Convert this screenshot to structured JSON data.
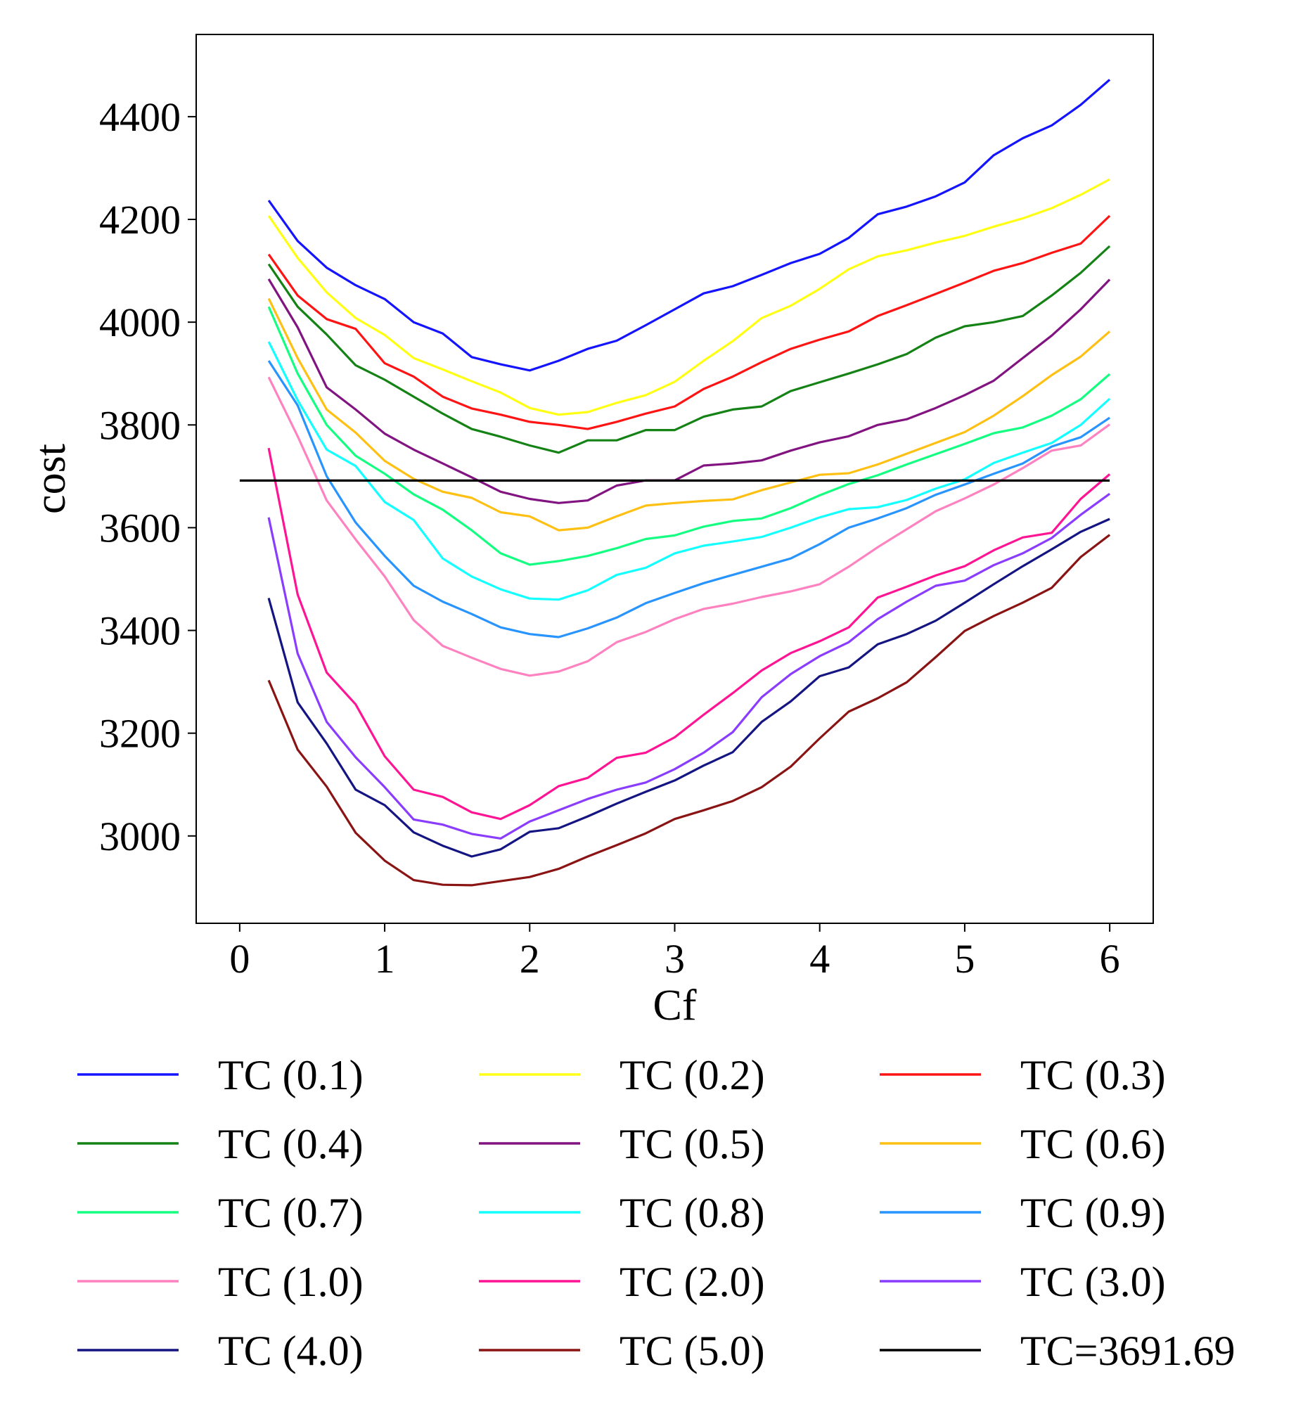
{
  "chart_data": {
    "type": "line",
    "title": "",
    "xlabel": "Cf",
    "ylabel": "cost",
    "xlim": [
      -0.3,
      6.3
    ],
    "ylim": [
      2830,
      4560
    ],
    "xticks": [
      "0",
      "1",
      "2",
      "3",
      "4",
      "5",
      "6"
    ],
    "yticks": [
      "3000",
      "3200",
      "3400",
      "3600",
      "3800",
      "4000",
      "4200",
      "4400"
    ],
    "legend_position": "bottom",
    "x": [
      0.2,
      0.4,
      0.6,
      0.8,
      1.0,
      1.2,
      1.4,
      1.6,
      1.8,
      2.0,
      2.2,
      2.4,
      2.6,
      2.8,
      3.0,
      3.2,
      3.4,
      3.6,
      3.8,
      4.0,
      4.2,
      4.4,
      4.6,
      4.8,
      5.0,
      5.2,
      5.4,
      5.6,
      5.8,
      6.0
    ],
    "series": [
      {
        "name": "TC (0.1)",
        "color": "#1414ff",
        "values": [
          4237,
          4158,
          4106,
          4072,
          4045,
          4000,
          3978,
          3932,
          3918,
          3906,
          3925,
          3948,
          3964,
          3994,
          4025,
          4056,
          4070,
          4092,
          4115,
          4133,
          4164,
          4210,
          4225,
          4245,
          4272,
          4325,
          4358,
          4383,
          4423,
          4472
        ]
      },
      {
        "name": "TC (0.2)",
        "color": "#ffff14",
        "values": [
          4207,
          4125,
          4058,
          4008,
          3975,
          3930,
          3908,
          3885,
          3863,
          3833,
          3820,
          3825,
          3843,
          3858,
          3884,
          3925,
          3963,
          4008,
          4032,
          4065,
          4103,
          4128,
          4140,
          4155,
          4168,
          4186,
          4202,
          4222,
          4248,
          4278
        ]
      },
      {
        "name": "TC (0.3)",
        "color": "#ff1414",
        "values": [
          4132,
          4052,
          4006,
          3987,
          3920,
          3894,
          3855,
          3832,
          3820,
          3806,
          3800,
          3792,
          3806,
          3822,
          3836,
          3870,
          3894,
          3922,
          3948,
          3966,
          3982,
          4012,
          4033,
          4055,
          4077,
          4100,
          4115,
          4135,
          4153,
          4207
        ]
      },
      {
        "name": "TC (0.4)",
        "color": "#148214",
        "values": [
          4113,
          4030,
          3976,
          3916,
          3888,
          3855,
          3822,
          3792,
          3777,
          3760,
          3746,
          3770,
          3770,
          3790,
          3790,
          3816,
          3830,
          3836,
          3866,
          3883,
          3900,
          3918,
          3938,
          3970,
          3992,
          4000,
          4012,
          4052,
          4096,
          4148
        ]
      },
      {
        "name": "TC (0.5)",
        "color": "#821482",
        "values": [
          4084,
          3990,
          3873,
          3830,
          3783,
          3752,
          3725,
          3698,
          3670,
          3656,
          3648,
          3653,
          3682,
          3692,
          3692,
          3721,
          3725,
          3731,
          3750,
          3766,
          3778,
          3800,
          3811,
          3833,
          3858,
          3886,
          3930,
          3974,
          4025,
          4083
        ]
      },
      {
        "name": "TC (0.6)",
        "color": "#ffc014",
        "values": [
          4046,
          3930,
          3830,
          3785,
          3730,
          3695,
          3670,
          3658,
          3630,
          3622,
          3595,
          3600,
          3622,
          3643,
          3648,
          3652,
          3655,
          3673,
          3688,
          3703,
          3706,
          3723,
          3744,
          3765,
          3786,
          3818,
          3856,
          3897,
          3933,
          3982
        ]
      },
      {
        "name": "TC (0.7)",
        "color": "#14ff82",
        "values": [
          4030,
          3900,
          3800,
          3740,
          3705,
          3665,
          3635,
          3595,
          3550,
          3528,
          3535,
          3545,
          3560,
          3578,
          3585,
          3602,
          3613,
          3618,
          3638,
          3663,
          3685,
          3702,
          3723,
          3743,
          3763,
          3784,
          3795,
          3818,
          3850,
          3899
        ]
      },
      {
        "name": "TC (0.8)",
        "color": "#14ffff",
        "values": [
          3962,
          3848,
          3752,
          3720,
          3650,
          3615,
          3540,
          3505,
          3480,
          3462,
          3460,
          3478,
          3508,
          3522,
          3550,
          3565,
          3573,
          3582,
          3600,
          3620,
          3636,
          3640,
          3654,
          3676,
          3694,
          3726,
          3746,
          3765,
          3800,
          3851
        ]
      },
      {
        "name": "TC (0.9)",
        "color": "#2894ff",
        "values": [
          3925,
          3838,
          3700,
          3610,
          3545,
          3487,
          3456,
          3432,
          3406,
          3393,
          3387,
          3404,
          3425,
          3453,
          3473,
          3492,
          3508,
          3524,
          3540,
          3568,
          3600,
          3618,
          3638,
          3664,
          3684,
          3705,
          3725,
          3758,
          3776,
          3814
        ]
      },
      {
        "name": "TC (1.0)",
        "color": "#ff82c0",
        "values": [
          3893,
          3778,
          3653,
          3577,
          3505,
          3420,
          3370,
          3347,
          3325,
          3312,
          3320,
          3340,
          3377,
          3397,
          3422,
          3442,
          3452,
          3465,
          3476,
          3490,
          3524,
          3562,
          3597,
          3632,
          3657,
          3684,
          3716,
          3750,
          3760,
          3801
        ]
      },
      {
        "name": "TC (2.0)",
        "color": "#ff1494",
        "values": [
          3755,
          3470,
          3318,
          3256,
          3155,
          3090,
          3076,
          3046,
          3033,
          3060,
          3097,
          3113,
          3152,
          3162,
          3192,
          3236,
          3278,
          3322,
          3356,
          3379,
          3406,
          3464,
          3485,
          3507,
          3525,
          3556,
          3581,
          3590,
          3656,
          3704
        ]
      },
      {
        "name": "TC (3.0)",
        "color": "#8a3cff",
        "values": [
          3620,
          3355,
          3222,
          3153,
          3095,
          3032,
          3022,
          3004,
          2995,
          3028,
          3050,
          3072,
          3090,
          3104,
          3130,
          3162,
          3202,
          3270,
          3315,
          3350,
          3377,
          3422,
          3456,
          3487,
          3497,
          3527,
          3550,
          3580,
          3625,
          3666
        ]
      },
      {
        "name": "TC (4.0)",
        "color": "#141482",
        "values": [
          3463,
          3260,
          3180,
          3090,
          3060,
          3007,
          2981,
          2960,
          2974,
          3008,
          3015,
          3038,
          3063,
          3086,
          3108,
          3137,
          3163,
          3222,
          3262,
          3311,
          3328,
          3373,
          3393,
          3419,
          3454,
          3490,
          3525,
          3558,
          3592,
          3617
        ]
      },
      {
        "name": "TC (5.0)",
        "color": "#8a1414",
        "values": [
          3303,
          3168,
          3096,
          3006,
          2952,
          2914,
          2905,
          2904,
          2912,
          2920,
          2936,
          2960,
          2982,
          3005,
          3033,
          3050,
          3068,
          3095,
          3135,
          3190,
          3242,
          3268,
          3299,
          3348,
          3399,
          3428,
          3454,
          3483,
          3543,
          3586
        ]
      },
      {
        "name": "TC=3691.69",
        "color": "#000000",
        "reference": 3691.69,
        "x_range": [
          0.0,
          6.0
        ]
      }
    ]
  }
}
